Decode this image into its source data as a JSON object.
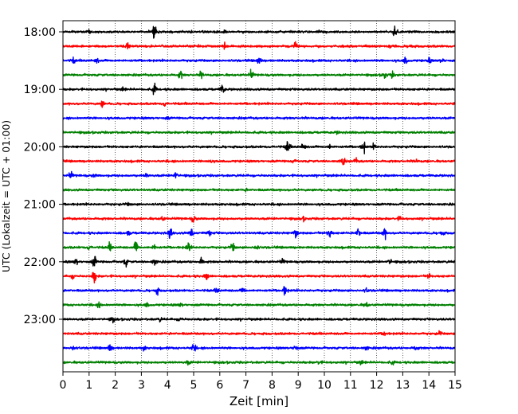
{
  "chart_data": {
    "type": "line",
    "title": "",
    "xlabel": "Zeit  [min]",
    "ylabel": "UTC (Lokalzeit = UTC + 01:00)",
    "xlim": [
      0,
      15
    ],
    "x_ticks": [
      0,
      1,
      2,
      3,
      4,
      5,
      6,
      7,
      8,
      9,
      10,
      11,
      12,
      13,
      14,
      15
    ],
    "y_tick_labels": [
      "18:00",
      "19:00",
      "20:00",
      "21:00",
      "22:00",
      "23:00"
    ],
    "grid_x": true,
    "trace_colors": [
      "#000000",
      "#ff0000",
      "#0000ff",
      "#008000"
    ],
    "rows": [
      {
        "start": "18:00",
        "events": [
          [
            3.5,
            1.0
          ],
          [
            12.7,
            0.9
          ],
          [
            1.0,
            0.25
          ],
          [
            6.2,
            0.2
          ]
        ]
      },
      {
        "start": "18:15",
        "events": [
          [
            2.5,
            0.55
          ],
          [
            6.2,
            0.35
          ],
          [
            8.9,
            0.45
          ],
          [
            12.5,
            0.3
          ],
          [
            13.3,
            0.25
          ]
        ]
      },
      {
        "start": "18:30",
        "events": [
          [
            0.4,
            0.35
          ],
          [
            1.3,
            0.3
          ],
          [
            7.5,
            0.6
          ],
          [
            13.1,
            0.5
          ],
          [
            14.0,
            0.35
          ],
          [
            14.5,
            0.3
          ]
        ]
      },
      {
        "start": "18:45",
        "events": [
          [
            4.5,
            0.55
          ],
          [
            5.3,
            0.45
          ],
          [
            7.2,
            0.6
          ],
          [
            12.3,
            0.45
          ],
          [
            12.6,
            0.35
          ]
        ]
      },
      {
        "start": "19:00",
        "events": [
          [
            3.5,
            0.75
          ],
          [
            6.1,
            0.65
          ],
          [
            2.3,
            0.2
          ]
        ]
      },
      {
        "start": "19:15",
        "events": [
          [
            1.5,
            0.45
          ],
          [
            3.9,
            0.35
          ]
        ]
      },
      {
        "start": "19:30",
        "events": [
          [
            4.0,
            0.15
          ]
        ]
      },
      {
        "start": "19:45",
        "events": [
          [
            10.5,
            0.15
          ]
        ]
      },
      {
        "start": "20:00",
        "events": [
          [
            8.6,
            0.9
          ],
          [
            11.5,
            0.85
          ],
          [
            10.2,
            0.3
          ],
          [
            9.2,
            0.45
          ],
          [
            11.9,
            0.3
          ]
        ]
      },
      {
        "start": "20:15",
        "events": [
          [
            10.7,
            0.6
          ],
          [
            5.6,
            0.3
          ],
          [
            11.2,
            0.3
          ],
          [
            13.5,
            0.25
          ],
          [
            8.8,
            0.2
          ]
        ]
      },
      {
        "start": "20:30",
        "events": [
          [
            0.3,
            0.45
          ],
          [
            4.3,
            0.6
          ],
          [
            3.2,
            0.3
          ],
          [
            1.2,
            0.2
          ]
        ]
      },
      {
        "start": "20:45",
        "events": [
          [
            7.0,
            0.12
          ]
        ]
      },
      {
        "start": "21:00",
        "events": [
          [
            2.5,
            0.15
          ]
        ]
      },
      {
        "start": "21:15",
        "events": [
          [
            5.0,
            0.55
          ],
          [
            3.8,
            0.3
          ],
          [
            12.9,
            0.3
          ],
          [
            9.2,
            0.2
          ]
        ]
      },
      {
        "start": "21:30",
        "events": [
          [
            4.1,
            0.75
          ],
          [
            8.9,
            0.6
          ],
          [
            10.2,
            0.8
          ],
          [
            11.3,
            0.7
          ],
          [
            12.3,
            0.8
          ],
          [
            4.9,
            0.6
          ],
          [
            5.6,
            0.4
          ],
          [
            2.5,
            0.3
          ],
          [
            14.5,
            0.3
          ]
        ]
      },
      {
        "start": "21:45",
        "events": [
          [
            2.8,
            0.9
          ],
          [
            4.8,
            0.7
          ],
          [
            6.5,
            0.6
          ],
          [
            1.8,
            0.5
          ],
          [
            3.5,
            0.4
          ],
          [
            7.4,
            0.4
          ],
          [
            1.0,
            0.3
          ]
        ]
      },
      {
        "start": "22:00",
        "events": [
          [
            1.2,
            0.9
          ],
          [
            2.4,
            0.6
          ],
          [
            3.5,
            0.55
          ],
          [
            0.5,
            0.45
          ],
          [
            5.3,
            0.5
          ],
          [
            8.4,
            0.3
          ],
          [
            12.5,
            0.35
          ]
        ]
      },
      {
        "start": "22:15",
        "events": [
          [
            1.2,
            1.0
          ],
          [
            5.5,
            0.5
          ],
          [
            0.4,
            0.3
          ],
          [
            14.0,
            0.3
          ]
        ]
      },
      {
        "start": "22:30",
        "events": [
          [
            3.6,
            0.5
          ],
          [
            8.5,
            0.75
          ],
          [
            6.9,
            0.45
          ],
          [
            5.9,
            0.3
          ],
          [
            11.6,
            0.25
          ]
        ]
      },
      {
        "start": "22:45",
        "events": [
          [
            1.4,
            0.35
          ],
          [
            3.2,
            0.3
          ],
          [
            11.6,
            0.35
          ],
          [
            4.5,
            0.25
          ]
        ]
      },
      {
        "start": "23:00",
        "events": [
          [
            1.9,
            0.35
          ],
          [
            4.5,
            0.3
          ],
          [
            3.7,
            0.25
          ]
        ]
      },
      {
        "start": "23:15",
        "events": [
          [
            12.3,
            0.3
          ],
          [
            14.4,
            0.3
          ]
        ]
      },
      {
        "start": "23:30",
        "events": [
          [
            0.4,
            0.4
          ],
          [
            1.8,
            0.55
          ],
          [
            5.0,
            0.65
          ],
          [
            8.9,
            0.5
          ],
          [
            3.1,
            0.3
          ],
          [
            11.6,
            0.3
          ],
          [
            13.5,
            0.3
          ]
        ]
      },
      {
        "start": "23:45",
        "events": [
          [
            4.8,
            0.3
          ],
          [
            9.8,
            0.25
          ],
          [
            11.4,
            0.25
          ],
          [
            12.6,
            0.25
          ]
        ]
      }
    ]
  }
}
